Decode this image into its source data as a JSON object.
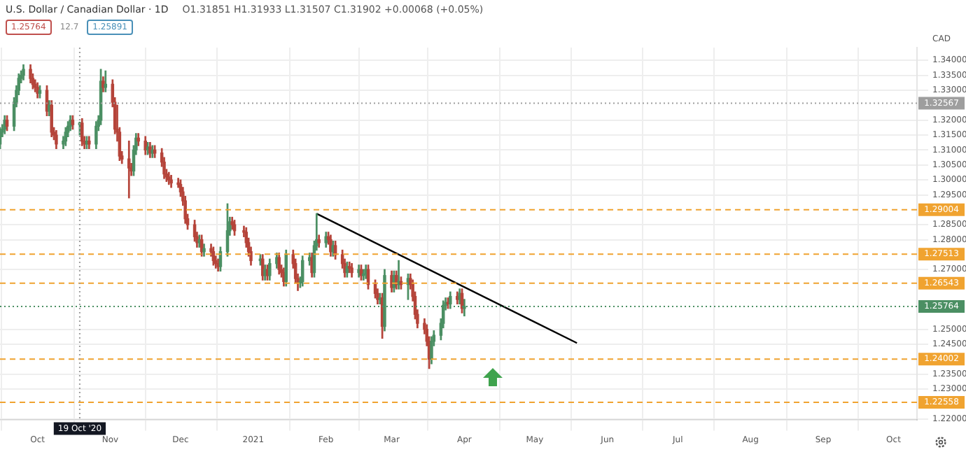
{
  "chart_data": {
    "type": "candlestick",
    "title": "U.S. Dollar / Canadian Dollar · 1D",
    "subtitle": "O1.31851 H1.31933 L1.31507 C1.31902 +0.00068 (+0.05%)",
    "ylabel": "CAD",
    "annotations": [
      "1.25764",
      "12.7",
      "1.25891"
    ],
    "x": [
      "2020-09-15",
      "2020-09-16",
      "2020-09-17",
      "2020-09-18",
      "2020-09-21",
      "2020-09-22",
      "2020-09-23",
      "2020-09-24",
      "2020-09-25",
      "2020-09-28",
      "2020-09-29",
      "2020-09-30",
      "2020-10-01",
      "2020-10-02",
      "2020-10-05",
      "2020-10-06",
      "2020-10-07",
      "2020-10-08",
      "2020-10-09",
      "2020-10-12",
      "2020-10-13",
      "2020-10-14",
      "2020-10-15",
      "2020-10-16",
      "2020-10-19",
      "2020-10-20",
      "2020-10-21",
      "2020-10-22",
      "2020-10-23",
      "2020-10-26",
      "2020-10-27",
      "2020-10-28",
      "2020-10-29",
      "2020-10-30",
      "2020-11-02",
      "2020-11-03",
      "2020-11-04",
      "2020-11-05",
      "2020-11-06",
      "2020-11-09",
      "2020-11-10",
      "2020-11-11",
      "2020-11-12",
      "2020-11-13",
      "2020-11-16",
      "2020-11-17",
      "2020-11-18",
      "2020-11-19",
      "2020-11-20",
      "2020-11-23",
      "2020-11-24",
      "2020-11-25",
      "2020-11-26",
      "2020-11-27",
      "2020-11-30",
      "2020-12-01",
      "2020-12-02",
      "2020-12-03",
      "2020-12-04",
      "2020-12-07",
      "2020-12-08",
      "2020-12-09",
      "2020-12-10",
      "2020-12-11",
      "2020-12-14",
      "2020-12-15",
      "2020-12-16",
      "2020-12-17",
      "2020-12-18",
      "2020-12-21",
      "2020-12-22",
      "2020-12-23",
      "2020-12-24",
      "2020-12-28",
      "2020-12-29",
      "2020-12-30",
      "2020-12-31",
      "2021-01-04",
      "2021-01-05",
      "2021-01-06",
      "2021-01-07",
      "2021-01-08",
      "2021-01-11",
      "2021-01-12",
      "2021-01-13",
      "2021-01-14",
      "2021-01-15",
      "2021-01-18",
      "2021-01-19",
      "2021-01-20",
      "2021-01-21",
      "2021-01-22",
      "2021-01-25",
      "2021-01-26",
      "2021-01-27",
      "2021-01-28",
      "2021-01-29",
      "2021-02-01",
      "2021-02-02",
      "2021-02-03",
      "2021-02-04",
      "2021-02-05",
      "2021-02-08",
      "2021-02-09",
      "2021-02-10",
      "2021-02-11",
      "2021-02-12",
      "2021-02-15",
      "2021-02-16",
      "2021-02-17",
      "2021-02-18",
      "2021-02-19",
      "2021-02-22",
      "2021-02-23",
      "2021-02-24",
      "2021-02-25",
      "2021-02-26",
      "2021-03-01",
      "2021-03-02",
      "2021-03-03",
      "2021-03-04",
      "2021-03-05",
      "2021-03-08",
      "2021-03-09",
      "2021-03-10",
      "2021-03-11",
      "2021-03-12",
      "2021-03-15",
      "2021-03-16",
      "2021-03-17",
      "2021-03-18",
      "2021-03-19",
      "2021-03-22",
      "2021-03-23",
      "2021-03-24",
      "2021-03-25",
      "2021-03-26",
      "2021-03-29",
      "2021-03-30",
      "2021-03-31",
      "2021-04-01"
    ],
    "ohlc": [
      [
        1.312,
        1.3175,
        1.3105,
        1.316
      ],
      [
        1.316,
        1.3185,
        1.3145,
        1.317
      ],
      [
        1.317,
        1.3215,
        1.3155,
        1.32
      ],
      [
        1.32,
        1.3215,
        1.3165,
        1.318
      ],
      [
        1.318,
        1.3275,
        1.3165,
        1.326
      ],
      [
        1.326,
        1.3315,
        1.3245,
        1.33
      ],
      [
        1.33,
        1.3355,
        1.3285,
        1.334
      ],
      [
        1.334,
        1.3365,
        1.3325,
        1.335
      ],
      [
        1.335,
        1.3385,
        1.3335,
        1.337
      ],
      [
        1.337,
        1.3385,
        1.3325,
        1.334
      ],
      [
        1.334,
        1.3355,
        1.3305,
        1.332
      ],
      [
        1.332,
        1.3335,
        1.3295,
        1.331
      ],
      [
        1.331,
        1.3325,
        1.3275,
        1.329
      ],
      [
        1.329,
        1.3315,
        1.3275,
        1.33
      ],
      [
        1.33,
        1.3315,
        1.3215,
        1.323
      ],
      [
        1.323,
        1.3265,
        1.3215,
        1.325
      ],
      [
        1.325,
        1.3265,
        1.3145,
        1.316
      ],
      [
        1.316,
        1.3175,
        1.3135,
        1.315
      ],
      [
        1.315,
        1.3165,
        1.3105,
        1.312
      ],
      [
        1.312,
        1.3145,
        1.3105,
        1.313
      ],
      [
        1.313,
        1.3175,
        1.3115,
        1.316
      ],
      [
        1.316,
        1.3195,
        1.3145,
        1.318
      ],
      [
        1.318,
        1.3215,
        1.3165,
        1.32
      ],
      [
        1.32,
        1.3215,
        1.317,
        1.3185
      ],
      [
        1.31851,
        1.31933,
        1.31507,
        1.31902
      ],
      [
        1.319,
        1.3205,
        1.3115,
        1.313
      ],
      [
        1.313,
        1.3145,
        1.3105,
        1.312
      ],
      [
        1.312,
        1.3145,
        1.3105,
        1.313
      ],
      [
        1.313,
        1.3145,
        1.3105,
        1.312
      ],
      [
        1.312,
        1.3195,
        1.3105,
        1.318
      ],
      [
        1.318,
        1.3215,
        1.3165,
        1.32
      ],
      [
        1.32,
        1.337,
        1.3185,
        1.333
      ],
      [
        1.333,
        1.3345,
        1.3295,
        1.331
      ],
      [
        1.331,
        1.3365,
        1.3295,
        1.332
      ],
      [
        1.332,
        1.3335,
        1.3245,
        1.326
      ],
      [
        1.326,
        1.3275,
        1.3155,
        1.317
      ],
      [
        1.317,
        1.325,
        1.313,
        1.316
      ],
      [
        1.316,
        1.3175,
        1.3065,
        1.308
      ],
      [
        1.308,
        1.3095,
        1.3055,
        1.307
      ],
      [
        1.307,
        1.313,
        1.294,
        1.304
      ],
      [
        1.304,
        1.3055,
        1.3015,
        1.303
      ],
      [
        1.303,
        1.3115,
        1.3015,
        1.31
      ],
      [
        1.31,
        1.3155,
        1.3085,
        1.314
      ],
      [
        1.314,
        1.3155,
        1.3115,
        1.313
      ],
      [
        1.313,
        1.3145,
        1.3085,
        1.31
      ],
      [
        1.31,
        1.3125,
        1.3085,
        1.311
      ],
      [
        1.311,
        1.3125,
        1.3075,
        1.309
      ],
      [
        1.309,
        1.3115,
        1.3075,
        1.31
      ],
      [
        1.31,
        1.3115,
        1.3075,
        1.309
      ],
      [
        1.309,
        1.3105,
        1.3045,
        1.306
      ],
      [
        1.306,
        1.3075,
        1.3005,
        1.302
      ],
      [
        1.302,
        1.3035,
        1.2995,
        1.301
      ],
      [
        1.301,
        1.3025,
        1.2985,
        1.3
      ],
      [
        1.3,
        1.3015,
        1.2975,
        1.299
      ],
      [
        1.299,
        1.3005,
        1.2975,
        1.2985
      ],
      [
        1.2985,
        1.3,
        1.2945,
        1.296
      ],
      [
        1.296,
        1.2975,
        1.2915,
        1.293
      ],
      [
        1.293,
        1.2945,
        1.2855,
        1.287
      ],
      [
        1.287,
        1.2885,
        1.2835,
        1.285
      ],
      [
        1.285,
        1.2865,
        1.2795,
        1.281
      ],
      [
        1.281,
        1.2825,
        1.2775,
        1.279
      ],
      [
        1.279,
        1.2815,
        1.2775,
        1.28
      ],
      [
        1.28,
        1.2815,
        1.2745,
        1.276
      ],
      [
        1.276,
        1.2785,
        1.2745,
        1.277
      ],
      [
        1.277,
        1.2785,
        1.2745,
        1.276
      ],
      [
        1.276,
        1.2775,
        1.2715,
        1.273
      ],
      [
        1.273,
        1.2745,
        1.2705,
        1.272
      ],
      [
        1.272,
        1.2735,
        1.2695,
        1.271
      ],
      [
        1.271,
        1.2775,
        1.2695,
        1.276
      ],
      [
        1.276,
        1.292,
        1.2745,
        1.283
      ],
      [
        1.283,
        1.2875,
        1.2815,
        1.286
      ],
      [
        1.286,
        1.2875,
        1.2835,
        1.285
      ],
      [
        1.285,
        1.2865,
        1.2815,
        1.283
      ],
      [
        1.283,
        1.2845,
        1.281,
        1.2825
      ],
      [
        1.2825,
        1.284,
        1.2775,
        1.279
      ],
      [
        1.279,
        1.2805,
        1.2745,
        1.276
      ],
      [
        1.276,
        1.2775,
        1.2715,
        1.273
      ],
      [
        1.273,
        1.275,
        1.2715,
        1.2735
      ],
      [
        1.2735,
        1.275,
        1.2665,
        1.268
      ],
      [
        1.268,
        1.2715,
        1.2665,
        1.27
      ],
      [
        1.27,
        1.2715,
        1.2665,
        1.268
      ],
      [
        1.268,
        1.2735,
        1.2665,
        1.272
      ],
      [
        1.272,
        1.2755,
        1.2705,
        1.274
      ],
      [
        1.274,
        1.2755,
        1.2685,
        1.27
      ],
      [
        1.27,
        1.2715,
        1.2675,
        1.269
      ],
      [
        1.269,
        1.2705,
        1.2645,
        1.266
      ],
      [
        1.266,
        1.2765,
        1.2645,
        1.275
      ],
      [
        1.275,
        1.2765,
        1.2705,
        1.272
      ],
      [
        1.272,
        1.2735,
        1.2655,
        1.267
      ],
      [
        1.267,
        1.2685,
        1.263,
        1.2655
      ],
      [
        1.2655,
        1.2675,
        1.264,
        1.266
      ],
      [
        1.266,
        1.2745,
        1.2645,
        1.273
      ],
      [
        1.273,
        1.2755,
        1.2715,
        1.274
      ],
      [
        1.274,
        1.2755,
        1.2675,
        1.269
      ],
      [
        1.269,
        1.2795,
        1.2675,
        1.278
      ],
      [
        1.278,
        1.2887,
        1.2765,
        1.28
      ],
      [
        1.28,
        1.2815,
        1.2775,
        1.279
      ],
      [
        1.279,
        1.2825,
        1.2775,
        1.281
      ],
      [
        1.281,
        1.2825,
        1.2785,
        1.28
      ],
      [
        1.28,
        1.2815,
        1.2745,
        1.276
      ],
      [
        1.276,
        1.2795,
        1.2745,
        1.278
      ],
      [
        1.278,
        1.2795,
        1.2735,
        1.275
      ],
      [
        1.275,
        1.2765,
        1.2705,
        1.272
      ],
      [
        1.272,
        1.2735,
        1.2675,
        1.269
      ],
      [
        1.269,
        1.2725,
        1.2675,
        1.271
      ],
      [
        1.271,
        1.2725,
        1.269,
        1.2705
      ],
      [
        1.2705,
        1.272,
        1.2675,
        1.269
      ],
      [
        1.269,
        1.2715,
        1.2675,
        1.27
      ],
      [
        1.27,
        1.2715,
        1.2665,
        1.268
      ],
      [
        1.268,
        1.27,
        1.2665,
        1.2685
      ],
      [
        1.2685,
        1.2715,
        1.267,
        1.27
      ],
      [
        1.27,
        1.2715,
        1.2635,
        1.265
      ],
      [
        1.265,
        1.2665,
        1.2605,
        1.262
      ],
      [
        1.262,
        1.2635,
        1.2585,
        1.26
      ],
      [
        1.26,
        1.262,
        1.2585,
        1.2605
      ],
      [
        1.2605,
        1.262,
        1.247,
        1.251
      ],
      [
        1.251,
        1.27,
        1.2495,
        1.268
      ],
      [
        1.268,
        1.2695,
        1.2625,
        1.264
      ],
      [
        1.264,
        1.2695,
        1.2625,
        1.268
      ],
      [
        1.268,
        1.2695,
        1.2635,
        1.265
      ],
      [
        1.265,
        1.273,
        1.2635,
        1.266
      ],
      [
        1.266,
        1.2675,
        1.2635,
        1.265
      ],
      [
        1.265,
        1.2685,
        1.26,
        1.267
      ],
      [
        1.267,
        1.2685,
        1.2635,
        1.265
      ],
      [
        1.265,
        1.2665,
        1.2595,
        1.261
      ],
      [
        1.261,
        1.2625,
        1.2535,
        1.255
      ],
      [
        1.255,
        1.2565,
        1.2505,
        1.252
      ],
      [
        1.252,
        1.2535,
        1.2485,
        1.25
      ],
      [
        1.25,
        1.2515,
        1.2445,
        1.246
      ],
      [
        1.246,
        1.2475,
        1.2369,
        1.24
      ],
      [
        1.24,
        1.2475,
        1.2385,
        1.246
      ],
      [
        1.246,
        1.2495,
        1.2445,
        1.248
      ],
      [
        1.248,
        1.2535,
        1.2465,
        1.252
      ],
      [
        1.252,
        1.2595,
        1.2505,
        1.258
      ],
      [
        1.258,
        1.2605,
        1.2565,
        1.259
      ],
      [
        1.259,
        1.2605,
        1.257,
        1.2585
      ],
      [
        1.2585,
        1.2625,
        1.257,
        1.261
      ],
      [
        1.261,
        1.2625,
        1.2585,
        1.26
      ],
      [
        1.26,
        1.2635,
        1.2585,
        1.262
      ],
      [
        1.262,
        1.2635,
        1.2555,
        1.257
      ],
      [
        1.257,
        1.26,
        1.2545,
        1.25764
      ]
    ],
    "series": [
      {
        "type": "line",
        "x": [
          "2021-01-28",
          "2021-05-19"
        ],
        "values": [
          1.2887,
          1.2454
        ],
        "color": "#000000"
      }
    ],
    "xlim": [
      "2020-09-15",
      "2021-10-11"
    ],
    "xticks": [
      {
        "value": "2020-10-01",
        "label": "Oct"
      },
      {
        "value": "2020-11-01",
        "label": "Nov"
      },
      {
        "value": "2020-12-01",
        "label": "Dec"
      },
      {
        "value": "2021-01-01",
        "label": "2021"
      },
      {
        "value": "2021-02-01",
        "label": "Feb"
      },
      {
        "value": "2021-03-01",
        "label": "Mar"
      },
      {
        "value": "2021-04-01",
        "label": "Apr"
      },
      {
        "value": "2021-05-01",
        "label": "May"
      },
      {
        "value": "2021-06-01",
        "label": "Jun"
      },
      {
        "value": "2021-07-01",
        "label": "Jul"
      },
      {
        "value": "2021-08-01",
        "label": "Aug"
      },
      {
        "value": "2021-09-01",
        "label": "Sep"
      },
      {
        "value": "2021-10-01",
        "label": "Oct"
      }
    ],
    "ylim": [
      1.2198,
      1.3443
    ],
    "yticks": [
      {
        "value": 1.34,
        "label": "1.34000"
      },
      {
        "value": 1.335,
        "label": "1.33500"
      },
      {
        "value": 1.33,
        "label": "1.33000"
      },
      {
        "value": 1.32,
        "label": "1.32000"
      },
      {
        "value": 1.315,
        "label": "1.31500"
      },
      {
        "value": 1.31,
        "label": "1.31000"
      },
      {
        "value": 1.305,
        "label": "1.30500"
      },
      {
        "value": 1.3,
        "label": "1.30000"
      },
      {
        "value": 1.295,
        "label": "1.29500"
      },
      {
        "value": 1.285,
        "label": "1.28500"
      },
      {
        "value": 1.28,
        "label": "1.28000"
      },
      {
        "value": 1.27,
        "label": "1.27000"
      },
      {
        "value": 1.25,
        "label": "1.25000"
      },
      {
        "value": 1.245,
        "label": "1.24500"
      },
      {
        "value": 1.235,
        "label": "1.23500"
      },
      {
        "value": 1.23,
        "label": "1.23000"
      },
      {
        "value": 1.22,
        "label": "1.22000"
      }
    ],
    "ref_lines": [
      {
        "axis": "y",
        "value": 1.29004,
        "label": "1.29004",
        "color": "#f0a330",
        "line_style": "dashed"
      },
      {
        "axis": "y",
        "value": 1.27513,
        "label": "1.27513",
        "color": "#f0a330",
        "line_style": "dashed"
      },
      {
        "axis": "y",
        "value": 1.26543,
        "label": "1.26543",
        "color": "#f0a330",
        "line_style": "dashed"
      },
      {
        "axis": "y",
        "value": 1.24002,
        "label": "1.24002",
        "color": "#f0a330",
        "line_style": "dashed"
      },
      {
        "axis": "y",
        "value": 1.22558,
        "label": "1.22558",
        "color": "#f0a330",
        "line_style": "dashed"
      },
      {
        "axis": "y",
        "value": 1.32567,
        "label": "1.32567",
        "color": "#9e9e9e",
        "line_style": "dotted"
      },
      {
        "axis": "y",
        "value": 1.25764,
        "label": "1.25764",
        "color": "#4b8f63",
        "line_style": "dotted"
      },
      {
        "axis": "x",
        "value": "2020-10-19",
        "label": "19 Oct '20",
        "color": "#9e9e9e",
        "line_style": "dotted"
      }
    ],
    "grid": true,
    "legend": false
  }
}
